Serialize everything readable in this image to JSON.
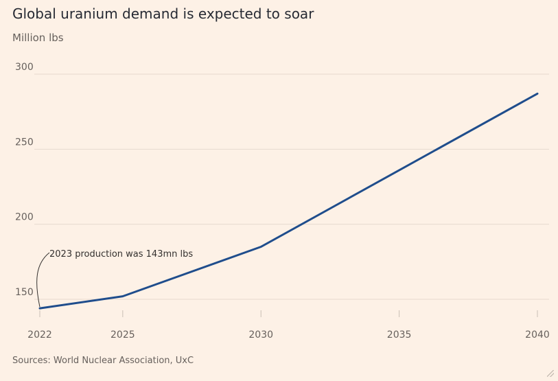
{
  "chart_data": {
    "type": "line",
    "title": "Global uranium demand is expected to soar",
    "subtitle": "Million lbs",
    "source": "Sources: World Nuclear Association, UxC",
    "x": [
      2022,
      2025,
      2030,
      2040
    ],
    "x_ticks": [
      "2022",
      "2025",
      "2030",
      "2035",
      "2040"
    ],
    "x_tick_values": [
      2022,
      2025,
      2030,
      2035,
      2040
    ],
    "xlim": [
      2022,
      2040
    ],
    "y_ticks": [
      "300",
      "250",
      "200",
      "150"
    ],
    "y_tick_values": [
      300,
      250,
      200,
      150
    ],
    "ylim": [
      140,
      300
    ],
    "grid": "horizontal",
    "series": [
      {
        "values": [
          144,
          152,
          185,
          287
        ],
        "color": "#1F4D8C"
      }
    ],
    "annotations": [
      {
        "text": "2023 production was 143mn lbs",
        "x": 2022,
        "y": 144
      }
    ]
  }
}
